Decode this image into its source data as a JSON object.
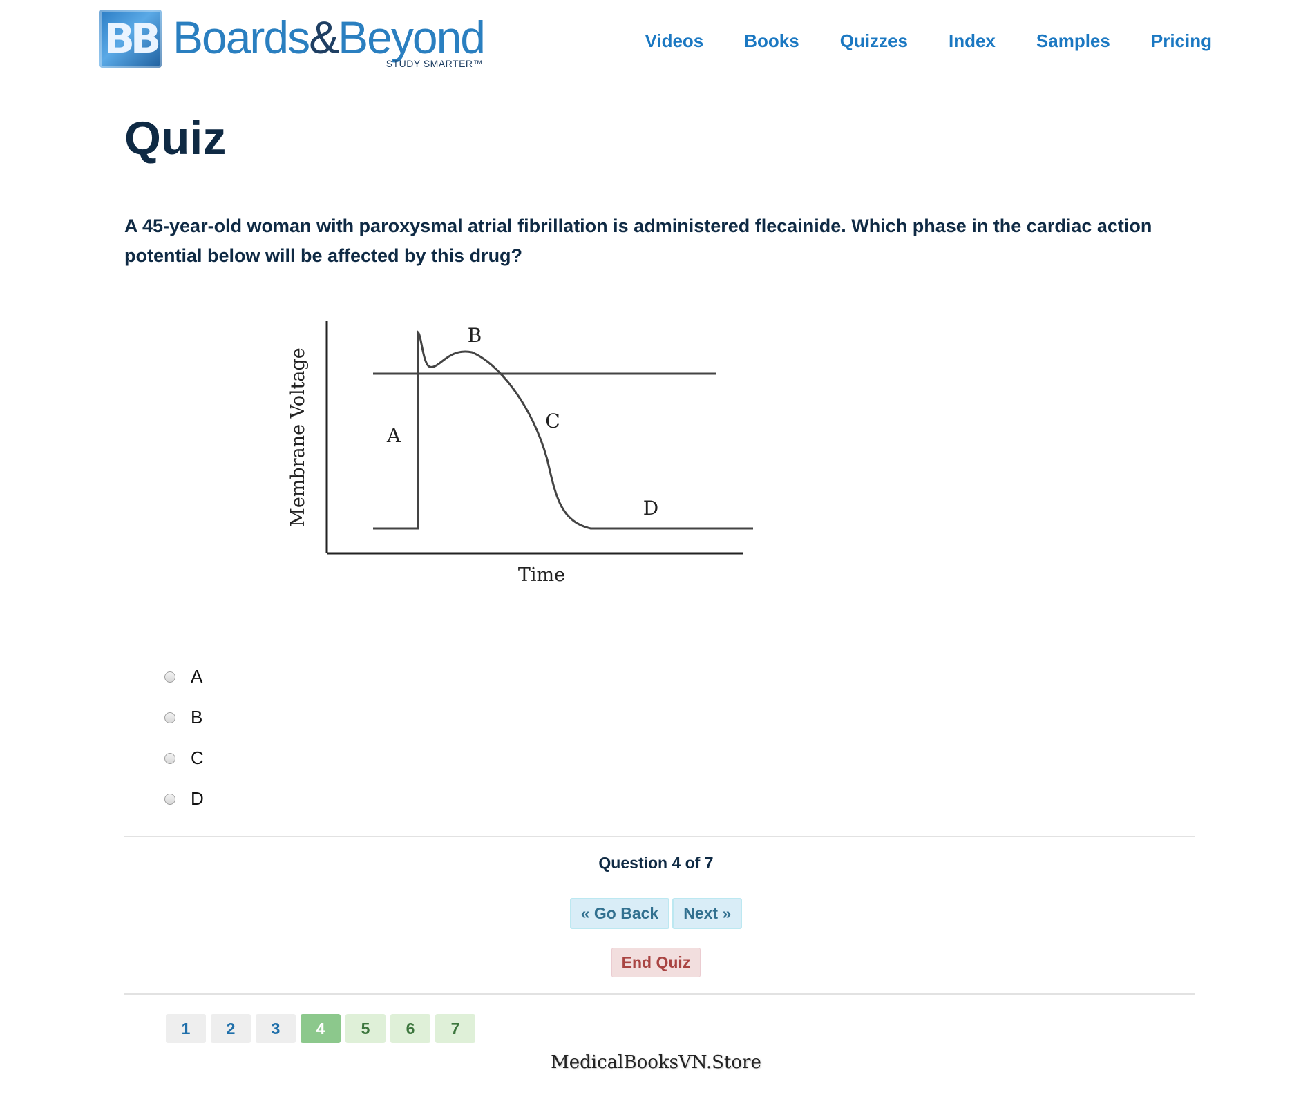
{
  "header": {
    "logo_initials": "BB",
    "logo_word_a": "Boards",
    "logo_amp": "&",
    "logo_word_b": "Beyond",
    "logo_tagline": "STUDY SMARTER™",
    "nav": [
      "Videos",
      "Books",
      "Quizzes",
      "Index",
      "Samples",
      "Pricing"
    ]
  },
  "page": {
    "title": "Quiz"
  },
  "question": {
    "text": "A 45-year-old woman with paroxysmal atrial fibrillation is administered flecainide. Which phase in the cardiac action potential below will be affected by this drug?",
    "figure": {
      "y_axis_label": "Membrane Voltage",
      "x_axis_label": "Time",
      "phase_labels": [
        "A",
        "B",
        "C",
        "D"
      ]
    },
    "options": [
      "A",
      "B",
      "C",
      "D"
    ]
  },
  "progress": {
    "label": "Question 4 of 7",
    "current": 4,
    "total": 7
  },
  "buttons": {
    "go_back": "« Go Back",
    "next": "Next »",
    "end_quiz": "End Quiz"
  },
  "pagination": [
    "1",
    "2",
    "3",
    "4",
    "5",
    "6",
    "7"
  ],
  "watermark": "MedicalBooksVN.Store",
  "colors": {
    "brand_blue": "#2a7fc0",
    "nav_link": "#1b78c2",
    "heading": "#0f2a44",
    "current_page": "#8cc88c",
    "danger": "#a94442"
  }
}
